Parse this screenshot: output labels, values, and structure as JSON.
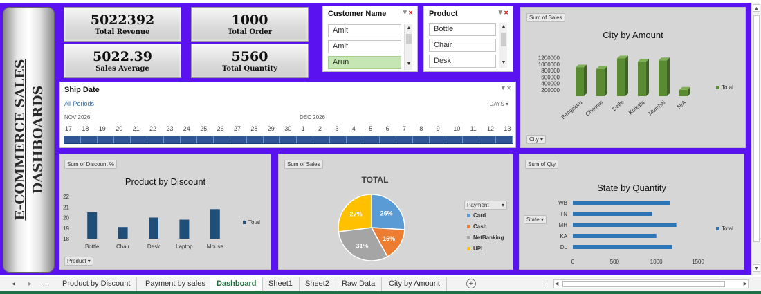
{
  "dashboard_title": {
    "line1": "E-COMMERCE SALES",
    "line2": "DASHBOARDS"
  },
  "kpis": [
    {
      "value": "5022392",
      "label": "Total Revenue"
    },
    {
      "value": "1000",
      "label": "Total Order"
    },
    {
      "value": "5022.39",
      "label": "Sales Average"
    },
    {
      "value": "5560",
      "label": "Total Quantity"
    }
  ],
  "customer_slicer": {
    "title": "Customer Name",
    "items": [
      "Amit",
      "Amit",
      "Arun"
    ],
    "selected": "Arun"
  },
  "product_slicer": {
    "title": "Product",
    "items": [
      "Bottle",
      "Chair",
      "Desk"
    ]
  },
  "timeline": {
    "title": "Ship Date",
    "period_label": "All Periods",
    "unit_label": "DAYS",
    "months": [
      "NOV 2026",
      "DEC 2026"
    ],
    "days": [
      "17",
      "18",
      "19",
      "20",
      "21",
      "22",
      "23",
      "24",
      "25",
      "26",
      "27",
      "28",
      "29",
      "30",
      "1",
      "2",
      "3",
      "4",
      "5",
      "6",
      "7",
      "8",
      "9",
      "10",
      "11",
      "12",
      "13"
    ]
  },
  "city_chart": {
    "field_button": "Sum of Sales",
    "axis_button": "City",
    "legend": "Total",
    "color": "#5a8a32"
  },
  "discount_chart": {
    "field_button": "Sum of Discount %",
    "axis_button": "Product",
    "legend": "Total",
    "color": "#1f4e79"
  },
  "payment_chart": {
    "field_button": "Sum of Sales",
    "legend_header": "Payment"
  },
  "state_chart": {
    "field_button": "Sum of Qty",
    "axis_button": "State",
    "legend": "Total",
    "color": "#2e75b6"
  },
  "chart_data": [
    {
      "type": "bar",
      "title": "City by Amount",
      "categories": [
        "Bengaluru",
        "Chennai",
        "Delhi",
        "Kolkata",
        "Mumbai",
        "N/A"
      ],
      "series": [
        {
          "name": "Total",
          "values": [
            900000,
            850000,
            1180000,
            1080000,
            1120000,
            200000
          ]
        }
      ],
      "yticks": [
        200000,
        400000,
        600000,
        800000,
        1000000,
        1200000
      ],
      "ylim": [
        0,
        1300000
      ]
    },
    {
      "type": "bar",
      "title": "Product by Discount",
      "categories": [
        "Bottle",
        "Chair",
        "Desk",
        "Laptop",
        "Mouse"
      ],
      "series": [
        {
          "name": "Total",
          "values": [
            20.5,
            19.1,
            20.0,
            19.8,
            20.8
          ]
        }
      ],
      "yticks": [
        18,
        19,
        20,
        21,
        22
      ],
      "ylim": [
        18,
        22
      ]
    },
    {
      "type": "pie",
      "title": "TOTAL",
      "categories": [
        "Card",
        "Cash",
        "NetBanking",
        "UPI"
      ],
      "values": [
        26,
        16,
        31,
        27
      ],
      "labels": [
        "26%",
        "16%",
        "31%",
        "27%"
      ],
      "colors": [
        "#5b9bd5",
        "#ed7d31",
        "#a5a5a5",
        "#ffc000"
      ]
    },
    {
      "type": "bar",
      "orientation": "horizontal",
      "title": "State by Quantity",
      "categories": [
        "WB",
        "TN",
        "MH",
        "KA",
        "DL"
      ],
      "series": [
        {
          "name": "Total",
          "values": [
            1160,
            950,
            1240,
            1000,
            1190
          ]
        }
      ],
      "xticks": [
        0,
        500,
        1000,
        1500
      ],
      "xlim": [
        0,
        1500
      ]
    }
  ],
  "sheet_tabs": [
    "Product by Discount",
    "Payment by sales",
    "Dashboard",
    "Sheet1",
    "Sheet2",
    "Raw Data",
    "City by Amount"
  ],
  "active_tab": "Dashboard",
  "tab_nav": {
    "prev": "◂",
    "next": "▸",
    "more": "...",
    "add": "+"
  }
}
